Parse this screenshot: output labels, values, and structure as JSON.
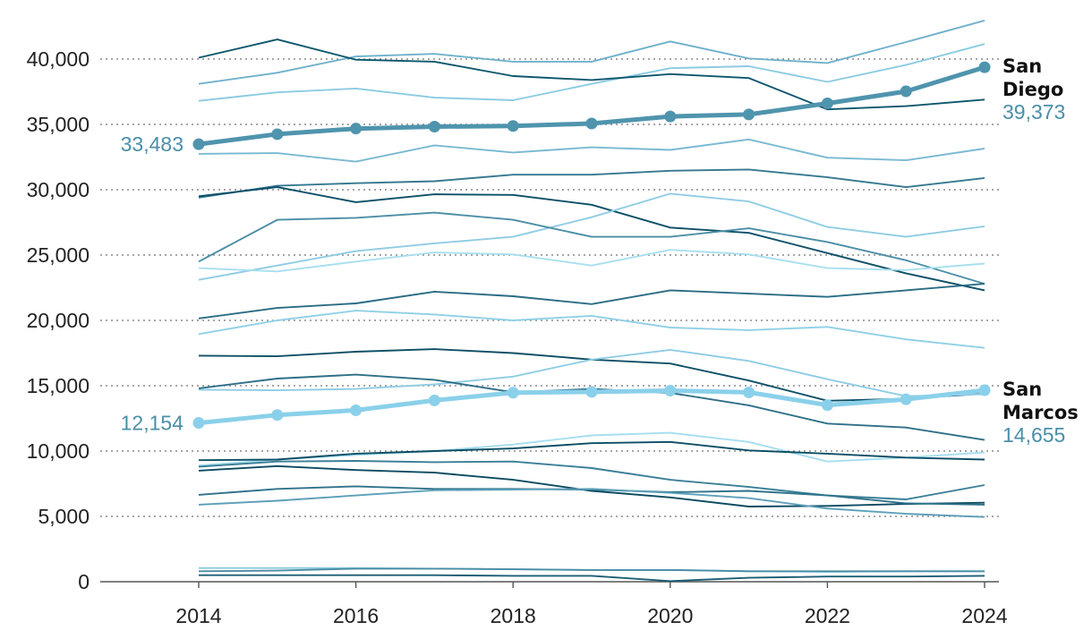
{
  "chart_data": {
    "type": "line",
    "x": [
      2014,
      2015,
      2016,
      2017,
      2018,
      2019,
      2020,
      2021,
      2022,
      2023,
      2024
    ],
    "xticks": [
      2014,
      2016,
      2018,
      2020,
      2022,
      2024
    ],
    "xtick_labels": [
      "2014",
      "2016",
      "2018",
      "2020",
      "2022",
      "2024"
    ],
    "xlim": [
      2012.7,
      2024.3
    ],
    "ylim": [
      0,
      43500
    ],
    "yticks": [
      0,
      5000,
      10000,
      15000,
      20000,
      25000,
      30000,
      35000,
      40000
    ],
    "ytick_labels": [
      "0",
      "5,000",
      "10,000",
      "15,000",
      "20,000",
      "25,000",
      "30,000",
      "35,000",
      "40,000"
    ],
    "grid": "horizontal dotted",
    "title": "",
    "xlabel": "",
    "ylabel": "",
    "highlighted": [
      {
        "name": "San Diego",
        "name_lines": [
          "San",
          "Diego"
        ],
        "color": "#4f94ad",
        "label_color": "#4a8fa8",
        "values": [
          33483,
          34250,
          34680,
          34830,
          34880,
          35070,
          35610,
          35760,
          36610,
          37530,
          39373
        ],
        "start_label": "33,483",
        "end_label": "39,373"
      },
      {
        "name": "San Marcos",
        "name_lines": [
          "San",
          "Marcos"
        ],
        "color": "#8ad0ea",
        "label_color": "#4a8fa8",
        "values": [
          12154,
          12760,
          13120,
          13880,
          14470,
          14530,
          14620,
          14490,
          13520,
          13960,
          14655
        ],
        "start_label": "12,154",
        "end_label": "14,655"
      }
    ],
    "background_series": [
      {
        "color": "#6fb1cb",
        "values": [
          38100,
          38950,
          40200,
          40400,
          39800,
          39800,
          41350,
          40050,
          39700,
          41300,
          42950
        ]
      },
      {
        "color": "#8ccbe2",
        "values": [
          36800,
          37450,
          37750,
          37050,
          36850,
          38100,
          39300,
          39450,
          38250,
          39550,
          41150
        ]
      },
      {
        "color": "#0c566d",
        "values": [
          40100,
          41500,
          39950,
          39800,
          38700,
          38400,
          38850,
          38550,
          36150,
          36400,
          36900
        ]
      },
      {
        "color": "#79b9d2",
        "values": [
          32750,
          32800,
          32150,
          33400,
          32850,
          33250,
          33050,
          33850,
          32450,
          32250,
          33150
        ]
      },
      {
        "color": "#35788f",
        "values": [
          29400,
          30300,
          30500,
          30650,
          31150,
          31150,
          31450,
          31550,
          30950,
          30200,
          30900
        ]
      },
      {
        "color": "#0a4f67",
        "values": [
          29500,
          30200,
          29050,
          29650,
          29600,
          28850,
          27100,
          26700,
          25150,
          23600,
          22300
        ]
      },
      {
        "color": "#8fcce3",
        "values": [
          23100,
          24200,
          25300,
          25900,
          26400,
          27900,
          29700,
          29100,
          27150,
          26400,
          27200
        ]
      },
      {
        "color": "#4b8ea6",
        "values": [
          24500,
          27700,
          27850,
          28250,
          27700,
          26400,
          26400,
          27050,
          26000,
          24600,
          22800
        ]
      },
      {
        "color": "#a8dff0",
        "values": [
          24000,
          23750,
          24500,
          25200,
          25050,
          24200,
          25400,
          25050,
          24000,
          23850,
          24350
        ]
      },
      {
        "color": "#2a6c84",
        "values": [
          20150,
          20950,
          21300,
          22200,
          21850,
          21250,
          22300,
          22050,
          21800,
          22300,
          22800
        ]
      },
      {
        "color": "#90d0e6",
        "values": [
          18950,
          20000,
          20750,
          20450,
          20000,
          20350,
          19450,
          19250,
          19500,
          18550,
          17900
        ]
      },
      {
        "color": "#0d4f66",
        "values": [
          17300,
          17250,
          17600,
          17800,
          17500,
          17000,
          16700,
          15400,
          13850,
          14000,
          14400
        ]
      },
      {
        "color": "#8fcde4",
        "values": [
          14700,
          14650,
          14750,
          15100,
          15700,
          17000,
          17750,
          16900,
          15500,
          14200,
          14350
        ]
      },
      {
        "color": "#2e6f88",
        "values": [
          14800,
          15550,
          15850,
          15450,
          14500,
          14750,
          14450,
          13500,
          12100,
          11800,
          10850
        ]
      },
      {
        "color": "#a6def0",
        "values": [
          8900,
          9350,
          9700,
          10000,
          10500,
          11200,
          11400,
          10700,
          9200,
          9500,
          9900
        ]
      },
      {
        "color": "#0b4d64",
        "values": [
          9300,
          9350,
          9800,
          10000,
          10200,
          10600,
          10700,
          10050,
          9800,
          9500,
          9350
        ]
      },
      {
        "color": "#3a7f97",
        "values": [
          8800,
          9200,
          9250,
          9150,
          9200,
          8700,
          7800,
          7250,
          6600,
          6300,
          7400
        ]
      },
      {
        "color": "#0a4a60",
        "values": [
          8500,
          8850,
          8550,
          8350,
          7800,
          6950,
          6450,
          5750,
          5800,
          5950,
          6050
        ]
      },
      {
        "color": "#2f728a",
        "values": [
          6650,
          7100,
          7300,
          7100,
          7100,
          7050,
          6850,
          6950,
          6600,
          6000,
          5900
        ]
      },
      {
        "color": "#5c9fb8",
        "values": [
          5900,
          6200,
          6600,
          7000,
          7050,
          7100,
          6800,
          6400,
          5600,
          5200,
          4950
        ]
      },
      {
        "color": "#8cc9df",
        "values": [
          1050,
          1050,
          1050,
          1000,
          950,
          900,
          900,
          800,
          750,
          800,
          800
        ]
      },
      {
        "color": "#4a8ca5",
        "values": [
          800,
          850,
          1000,
          1000,
          950,
          900,
          900,
          800,
          800,
          800,
          800
        ]
      },
      {
        "color": "#1d5e75",
        "values": [
          500,
          500,
          500,
          500,
          450,
          450,
          50,
          300,
          400,
          400,
          450
        ]
      }
    ]
  }
}
